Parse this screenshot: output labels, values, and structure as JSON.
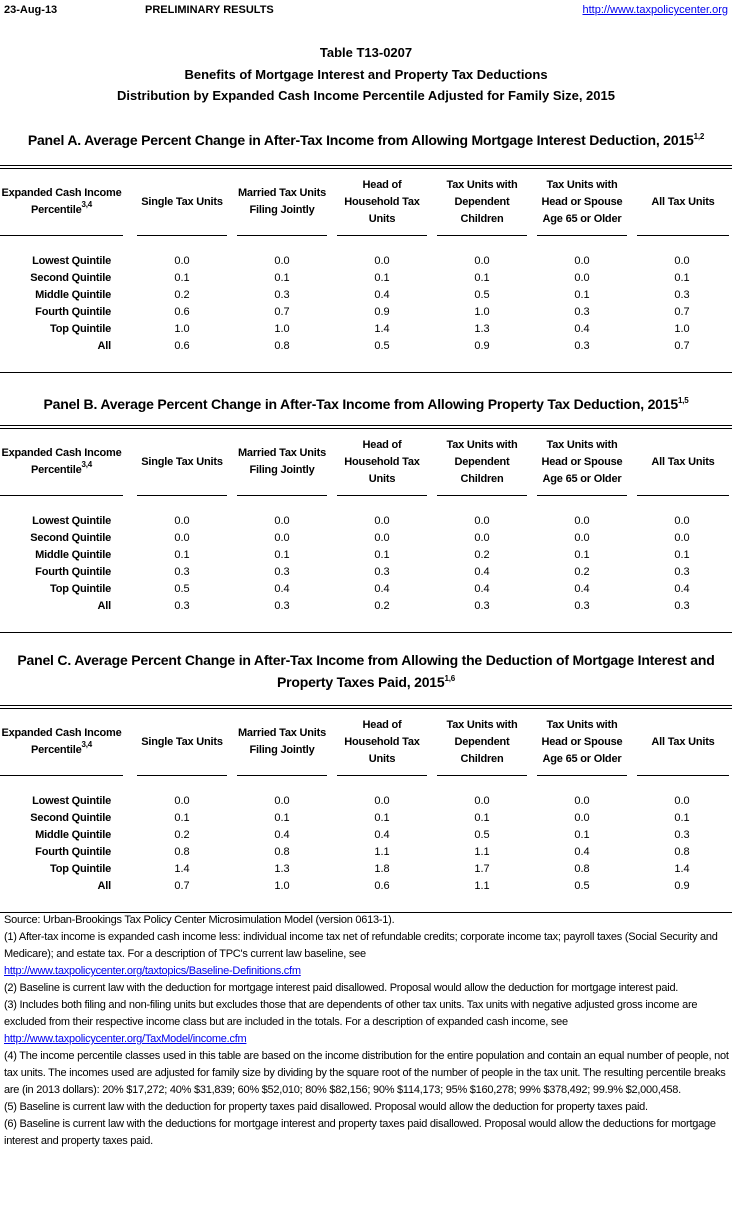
{
  "header": {
    "date": "23-Aug-13",
    "status": "PRELIMINARY RESULTS",
    "url": "http://www.taxpolicycenter.org"
  },
  "title": {
    "table_id": "Table T13-0207",
    "line1": "Benefits of Mortgage Interest and Property Tax Deductions",
    "line2": "Distribution by Expanded Cash Income Percentile Adjusted for Family Size, 2015"
  },
  "columns": {
    "label": "Expanded Cash Income Percentile",
    "label_sup": "3,4",
    "headers": [
      "Single Tax Units",
      "Married Tax Units Filing Jointly",
      "Head of Household Tax Units",
      "Tax Units with Dependent Children",
      "Tax Units with Head or Spouse Age 65 or Older",
      "All Tax Units"
    ]
  },
  "row_labels": [
    "Lowest Quintile",
    "Second Quintile",
    "Middle Quintile",
    "Fourth Quintile",
    "Top Quintile",
    "All"
  ],
  "panels": [
    {
      "title": "Panel A. Average Percent Change in After-Tax Income from Allowing Mortgage Interest Deduction, 2015",
      "title_sup": "1,2",
      "rows": [
        [
          "0.0",
          "0.0",
          "0.0",
          "0.0",
          "0.0",
          "0.0"
        ],
        [
          "0.1",
          "0.1",
          "0.1",
          "0.1",
          "0.0",
          "0.1"
        ],
        [
          "0.2",
          "0.3",
          "0.4",
          "0.5",
          "0.1",
          "0.3"
        ],
        [
          "0.6",
          "0.7",
          "0.9",
          "1.0",
          "0.3",
          "0.7"
        ],
        [
          "1.0",
          "1.0",
          "1.4",
          "1.3",
          "0.4",
          "1.0"
        ],
        [
          "0.6",
          "0.8",
          "0.5",
          "0.9",
          "0.3",
          "0.7"
        ]
      ]
    },
    {
      "title": "Panel B. Average Percent Change in After-Tax Income from Allowing Property Tax Deduction, 2015",
      "title_sup": "1,5",
      "rows": [
        [
          "0.0",
          "0.0",
          "0.0",
          "0.0",
          "0.0",
          "0.0"
        ],
        [
          "0.0",
          "0.0",
          "0.0",
          "0.0",
          "0.0",
          "0.0"
        ],
        [
          "0.1",
          "0.1",
          "0.1",
          "0.2",
          "0.1",
          "0.1"
        ],
        [
          "0.3",
          "0.3",
          "0.3",
          "0.4",
          "0.2",
          "0.3"
        ],
        [
          "0.5",
          "0.4",
          "0.4",
          "0.4",
          "0.4",
          "0.4"
        ],
        [
          "0.3",
          "0.3",
          "0.2",
          "0.3",
          "0.3",
          "0.3"
        ]
      ]
    },
    {
      "title": "Panel C. Average Percent Change in After-Tax Income from Allowing the Deduction of Mortgage Interest and Property Taxes Paid, 2015",
      "title_sup": "1,6",
      "rows": [
        [
          "0.0",
          "0.0",
          "0.0",
          "0.0",
          "0.0",
          "0.0"
        ],
        [
          "0.1",
          "0.1",
          "0.1",
          "0.1",
          "0.0",
          "0.1"
        ],
        [
          "0.2",
          "0.4",
          "0.4",
          "0.5",
          "0.1",
          "0.3"
        ],
        [
          "0.8",
          "0.8",
          "1.1",
          "1.1",
          "0.4",
          "0.8"
        ],
        [
          "1.4",
          "1.3",
          "1.8",
          "1.7",
          "0.8",
          "1.4"
        ],
        [
          "0.7",
          "1.0",
          "0.6",
          "1.1",
          "0.5",
          "0.9"
        ]
      ]
    }
  ],
  "footnotes": {
    "source": "Source: Urban-Brookings Tax Policy Center Microsimulation Model (version 0613-1).",
    "n1": "(1)  After-tax income is expanded cash income less: individual income tax net of refundable credits; corporate income tax; payroll taxes (Social Security and Medicare); and estate tax. For a description of TPC's current law baseline, see",
    "n1_link": "http://www.taxpolicycenter.org/taxtopics/Baseline-Definitions.cfm",
    "n2": "(2) Baseline is current law with the deduction for mortgage interest paid disallowed. Proposal would allow the deduction for mortgage interest paid.",
    "n3": "(3) Includes both filing and non-filing units but excludes those that are dependents of other tax units. Tax units with negative adjusted gross income are excluded from their respective income class but are included in the totals. For a description of expanded cash income, see",
    "n3_link": "http://www.taxpolicycenter.org/TaxModel/income.cfm",
    "n4": "(4) The income percentile classes used in this table are based on the income distribution for the entire population and contain an equal number of people, not tax units. The incomes used are adjusted for family size by dividing by the square root of the number of people in the tax unit. The resulting percentile  breaks are (in 2013 dollars): 20% $17,272; 40% $31,839; 60% $52,010; 80% $82,156; 90% $114,173; 95% $160,278; 99% $378,492; 99.9% $2,000,458.",
    "n5": "(5) Baseline is current law with the deduction for property taxes paid disallowed. Proposal would allow the deduction for property taxes paid.",
    "n6": "(6) Baseline is current law with the deductions for mortgage interest and property taxes paid disallowed. Proposal would allow the deductions for mortgage interest and property taxes paid."
  }
}
